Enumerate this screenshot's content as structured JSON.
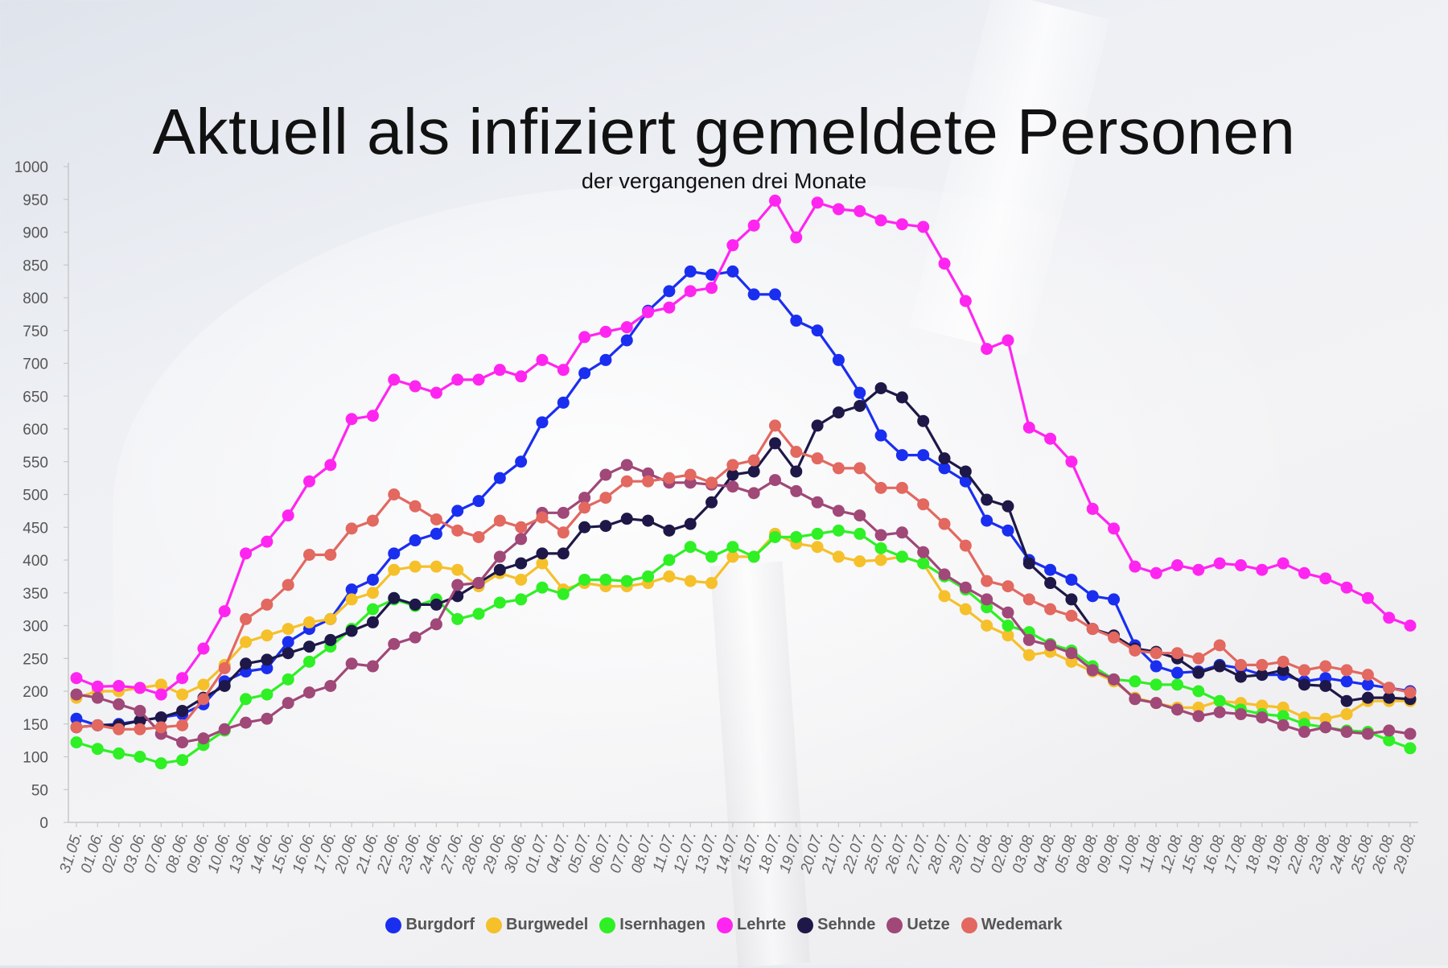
{
  "chart_data": {
    "type": "line",
    "title": "Aktuell als infiziert gemeldete Personen",
    "subtitle": "der vergangenen drei Monate",
    "xlabel": "",
    "ylabel": "",
    "ylim": [
      0,
      1000
    ],
    "yticks": [
      0,
      50,
      100,
      150,
      200,
      250,
      300,
      350,
      400,
      450,
      500,
      550,
      600,
      650,
      700,
      750,
      800,
      850,
      900,
      950,
      1000
    ],
    "grid": false,
    "legend_position": "bottom",
    "categories": [
      "31.05.",
      "01.06.",
      "02.06.",
      "03.06.",
      "07.06.",
      "08.06.",
      "09.06.",
      "10.06.",
      "13.06.",
      "14.06.",
      "15.06.",
      "16.06.",
      "17.06.",
      "20.06.",
      "21.06.",
      "22.06.",
      "23.06.",
      "24.06.",
      "27.06.",
      "28.06.",
      "29.06.",
      "30.06.",
      "01.07.",
      "04.07.",
      "05.07.",
      "06.07.",
      "07.07.",
      "08.07.",
      "11.07.",
      "12.07.",
      "13.07.",
      "14.07.",
      "15.07.",
      "18.07.",
      "19.07.",
      "20.07.",
      "21.07.",
      "22.07.",
      "25.07.",
      "26.07.",
      "27.07.",
      "28.07.",
      "29.07.",
      "01.08.",
      "02.08.",
      "03.08.",
      "04.08.",
      "05.08.",
      "08.08.",
      "09.08.",
      "10.08.",
      "11.08.",
      "12.08.",
      "15.08.",
      "16.08.",
      "17.08.",
      "18.08.",
      "19.08.",
      "22.08.",
      "23.08.",
      "24.08.",
      "25.08.",
      "26.08.",
      "29.08."
    ],
    "series": [
      {
        "name": "Burgdorf",
        "color": "#1a2ef0",
        "values": [
          158,
          148,
          150,
          155,
          160,
          165,
          180,
          215,
          230,
          235,
          275,
          295,
          310,
          355,
          370,
          410,
          430,
          440,
          475,
          490,
          525,
          550,
          610,
          640,
          685,
          705,
          735,
          780,
          810,
          840,
          835,
          840,
          805,
          805,
          765,
          750,
          705,
          655,
          590,
          560,
          560,
          540,
          520,
          460,
          445,
          400,
          385,
          370,
          345,
          340,
          270,
          238,
          228,
          230,
          240,
          235,
          225,
          225,
          215,
          220,
          215,
          210,
          205,
          200
        ]
      },
      {
        "name": "Burgwedel",
        "color": "#f5c02a",
        "values": [
          190,
          200,
          200,
          205,
          210,
          195,
          210,
          240,
          275,
          285,
          295,
          305,
          310,
          340,
          350,
          385,
          390,
          390,
          385,
          360,
          380,
          370,
          395,
          355,
          365,
          360,
          360,
          365,
          375,
          368,
          365,
          405,
          405,
          440,
          425,
          420,
          405,
          398,
          400,
          405,
          395,
          345,
          325,
          300,
          285,
          255,
          260,
          245,
          230,
          215,
          190,
          182,
          175,
          175,
          185,
          182,
          178,
          175,
          160,
          158,
          165,
          185,
          185,
          185
        ]
      },
      {
        "name": "Isernhagen",
        "color": "#2ef025",
        "values": [
          122,
          112,
          105,
          100,
          90,
          95,
          118,
          140,
          188,
          195,
          218,
          245,
          268,
          295,
          325,
          340,
          330,
          340,
          310,
          318,
          335,
          340,
          358,
          348,
          370,
          370,
          368,
          375,
          400,
          420,
          405,
          420,
          405,
          435,
          435,
          440,
          445,
          440,
          418,
          405,
          395,
          375,
          355,
          328,
          300,
          290,
          272,
          262,
          238,
          218,
          215,
          210,
          210,
          200,
          185,
          172,
          165,
          162,
          150,
          145,
          140,
          138,
          125,
          113
        ]
      },
      {
        "name": "Lehrte",
        "color": "#ff25f0",
        "values": [
          220,
          207,
          208,
          205,
          195,
          220,
          265,
          322,
          410,
          428,
          468,
          520,
          545,
          615,
          620,
          675,
          665,
          655,
          675,
          675,
          690,
          680,
          705,
          690,
          740,
          748,
          755,
          778,
          785,
          810,
          815,
          880,
          910,
          948,
          892,
          945,
          935,
          932,
          918,
          912,
          908,
          852,
          795,
          722,
          735,
          602,
          585,
          550,
          478,
          448,
          390,
          380,
          392,
          385,
          395,
          392,
          385,
          395,
          380,
          372,
          358,
          342,
          312,
          300
        ]
      },
      {
        "name": "Sehnde",
        "color": "#1e1848",
        "values": [
          145,
          148,
          148,
          155,
          160,
          170,
          190,
          208,
          242,
          248,
          258,
          268,
          278,
          292,
          305,
          342,
          332,
          332,
          345,
          365,
          385,
          395,
          410,
          410,
          450,
          452,
          463,
          460,
          445,
          455,
          488,
          530,
          535,
          578,
          535,
          605,
          625,
          635,
          662,
          648,
          612,
          555,
          535,
          492,
          482,
          395,
          365,
          340,
          295,
          285,
          265,
          260,
          250,
          228,
          238,
          222,
          225,
          232,
          210,
          208,
          185,
          190,
          190,
          188
        ]
      },
      {
        "name": "Uetze",
        "color": "#a04878",
        "values": [
          195,
          190,
          180,
          170,
          135,
          122,
          128,
          142,
          152,
          158,
          182,
          198,
          208,
          242,
          238,
          272,
          282,
          302,
          362,
          365,
          405,
          432,
          472,
          472,
          495,
          530,
          545,
          532,
          518,
          518,
          515,
          512,
          502,
          522,
          505,
          488,
          475,
          468,
          438,
          442,
          412,
          378,
          358,
          340,
          320,
          278,
          270,
          258,
          232,
          218,
          188,
          182,
          172,
          162,
          168,
          165,
          160,
          148,
          138,
          145,
          138,
          135,
          140,
          135
        ]
      },
      {
        "name": "Wedemark",
        "color": "#e26860",
        "values": [
          145,
          148,
          142,
          142,
          145,
          148,
          188,
          235,
          310,
          332,
          362,
          408,
          408,
          448,
          460,
          500,
          482,
          462,
          445,
          435,
          460,
          450,
          465,
          442,
          480,
          495,
          520,
          520,
          525,
          530,
          518,
          545,
          552,
          605,
          565,
          555,
          540,
          540,
          510,
          510,
          485,
          455,
          422,
          368,
          360,
          340,
          325,
          315,
          295,
          282,
          262,
          258,
          258,
          250,
          270,
          240,
          240,
          245,
          232,
          238,
          232,
          225,
          205,
          198
        ]
      }
    ]
  }
}
